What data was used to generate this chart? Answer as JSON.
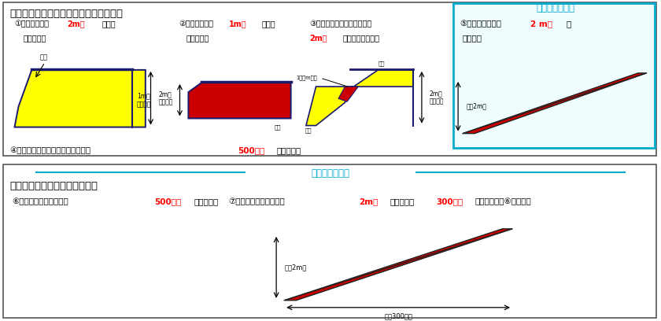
{
  "title_top": "＜土地の形質の変更（切土・盛土）　＞",
  "label1_line1": "①切土で高さが",
  "label1_highlight": "2m超",
  "label1_line1b": "の崖を",
  "label1_line2": "生ずるもの",
  "label2_line1": "②盛土で高さが",
  "label2_highlight": "1m超",
  "label2_line1b": "の崖を",
  "label2_line2": "生ずるもの",
  "label3_line1": "③切土と盛土を同時に行って",
  "label3_line2_highlight": "2m超",
  "label3_line2b": "の崖を生ずるもの",
  "new_add_label": "＜新たに追加＞",
  "label5_pre": "⑤盛土で高さが　",
  "label5_highlight": "2 m超",
  "label5_post": "と",
  "label5_line2": "なるもの",
  "label4": "④切土又は盛土をする土地の面積が",
  "label4_highlight": "500㎡超",
  "label4_end": "となるもの",
  "title_bottom": "＜土石の堆積（一時堆積）　＞",
  "new_add_label2": "＜新たに追加＞",
  "label6": "⑥最大時に堆積の面積が",
  "label6_highlight": "500㎡超",
  "label6_end": "となるもの",
  "label7_line1": "⑦最大時に堆積の高さが",
  "label7_highlight1": "2m超",
  "label7_mid": "かつ面積が",
  "label7_highlight2": "300㎡超",
  "label7_end": "となるもの（⑥を除く）",
  "color_highlight": "#ff0000",
  "color_cyan": "#00aacc",
  "color_yellow": "#ffff00",
  "color_red_fill": "#cc0000",
  "color_dark": "#1a1a6e",
  "color_border": "#333333",
  "color_bg_top": "#ffffff",
  "color_bg_cyan_box": "#f0fdff",
  "height_label_2m": "2mを\n超える崖",
  "height_label_1m": "1mを\n超える崖",
  "kiri_label": "切土",
  "mori_label": "盛土",
  "height_2m_chо": "高さ2m超",
  "area_300": "面積300㎡超",
  "label_1m_ika": "1．０m以下"
}
